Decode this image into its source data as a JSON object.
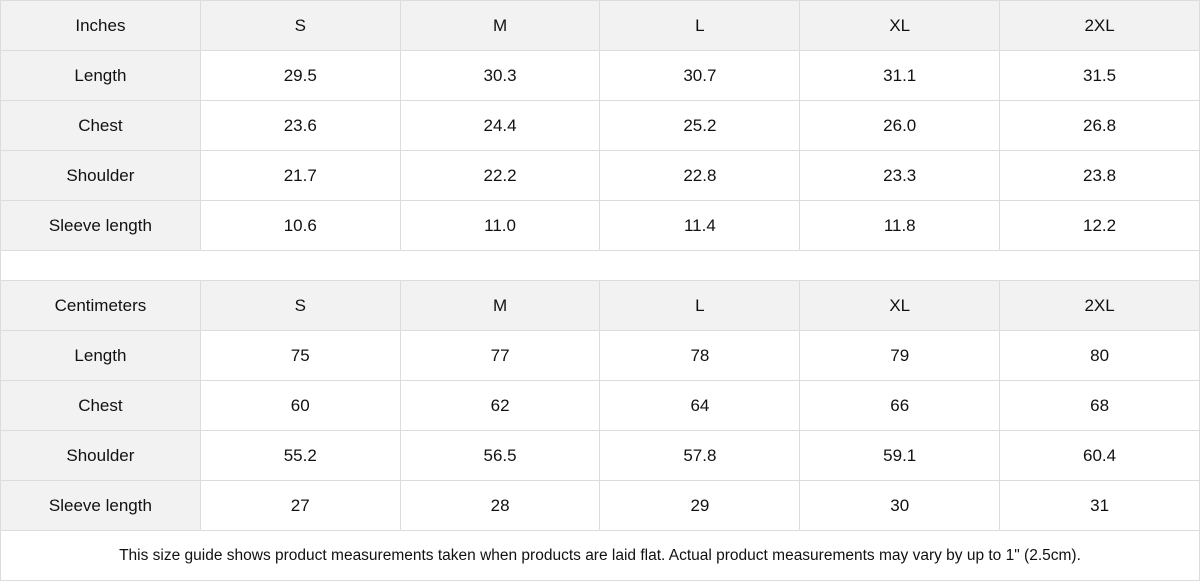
{
  "tables": [
    {
      "unit": "Inches",
      "sizes": [
        "S",
        "M",
        "L",
        "XL",
        "2XL"
      ],
      "rows": [
        {
          "label": "Length",
          "values": [
            "29.5",
            "30.3",
            "30.7",
            "31.1",
            "31.5"
          ]
        },
        {
          "label": "Chest",
          "values": [
            "23.6",
            "24.4",
            "25.2",
            "26.0",
            "26.8"
          ]
        },
        {
          "label": "Shoulder",
          "values": [
            "21.7",
            "22.2",
            "22.8",
            "23.3",
            "23.8"
          ]
        },
        {
          "label": "Sleeve length",
          "values": [
            "10.6",
            "11.0",
            "11.4",
            "11.8",
            "12.2"
          ]
        }
      ]
    },
    {
      "unit": "Centimeters",
      "sizes": [
        "S",
        "M",
        "L",
        "XL",
        "2XL"
      ],
      "rows": [
        {
          "label": "Length",
          "values": [
            "75",
            "77",
            "78",
            "79",
            "80"
          ]
        },
        {
          "label": "Chest",
          "values": [
            "60",
            "62",
            "64",
            "66",
            "68"
          ]
        },
        {
          "label": "Shoulder",
          "values": [
            "55.2",
            "56.5",
            "57.8",
            "59.1",
            "60.4"
          ]
        },
        {
          "label": "Sleeve length",
          "values": [
            "27",
            "28",
            "29",
            "30",
            "31"
          ]
        }
      ]
    }
  ],
  "note": "This size guide shows product measurements taken when products are laid flat.  Actual product measurements may vary by up to 1\" (2.5cm).",
  "colors": {
    "header_bg": "#f2f2f2",
    "border": "#dcdcdc"
  }
}
